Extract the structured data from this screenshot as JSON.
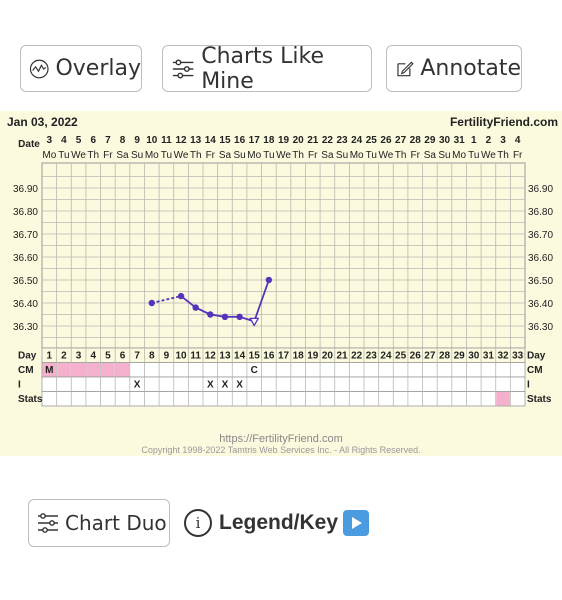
{
  "toolbar": {
    "overlay_label": "Overlay",
    "charts_like_mine_label": "Charts Like Mine",
    "annotate_label": "Annotate"
  },
  "chart": {
    "date": "Jan 03, 2022",
    "brand": "FertilityFriend.com",
    "footer_url": "https://FertilityFriend.com",
    "footer_copyright": "Copyright 1998-2022 Tamtris Web Services Inc. - All Rights Reserved."
  },
  "chart_data": {
    "type": "line",
    "row_labels": {
      "date": "Date",
      "day": "Day",
      "cm": "CM",
      "i": "I",
      "stats": "Stats"
    },
    "dates": [
      "3",
      "4",
      "5",
      "6",
      "7",
      "8",
      "9",
      "10",
      "11",
      "12",
      "13",
      "14",
      "15",
      "16",
      "17",
      "18",
      "19",
      "20",
      "21",
      "22",
      "23",
      "24",
      "25",
      "26",
      "27",
      "28",
      "29",
      "30",
      "31",
      "1",
      "2",
      "3",
      "4"
    ],
    "weekdays": [
      "Mo",
      "Tu",
      "We",
      "Th",
      "Fr",
      "Sa",
      "Su",
      "Mo",
      "Tu",
      "We",
      "Th",
      "Fr",
      "Sa",
      "Su",
      "Mo",
      "Tu",
      "We",
      "Th",
      "Fr",
      "Sa",
      "Su",
      "Mo",
      "Tu",
      "We",
      "Th",
      "Fr",
      "Sa",
      "Su",
      "Mo",
      "Tu",
      "We",
      "Th",
      "Fr"
    ],
    "weekday_labels_shown": [
      "Mo",
      "Tu",
      "We",
      "Th",
      "Fr",
      "Sa",
      "Su",
      "Mo",
      "Tu",
      "We",
      "Th",
      "Fr",
      "Sa",
      "Su",
      "Mo",
      "Tu",
      "We",
      "Th",
      "Fr",
      "Sa",
      "Su",
      "Mo",
      "Tu",
      "We",
      "Th",
      "Fr",
      "Sa",
      "Su",
      "Mo",
      "Tu",
      "We",
      "Th",
      "Fr"
    ],
    "days": [
      1,
      2,
      3,
      4,
      5,
      6,
      7,
      8,
      9,
      10,
      11,
      12,
      13,
      14,
      15,
      16,
      17,
      18,
      19,
      20,
      21,
      22,
      23,
      24,
      25,
      26,
      27,
      28,
      29,
      30,
      31,
      32,
      33
    ],
    "y_ticks": [
      "36.90",
      "36.80",
      "36.70",
      "36.60",
      "36.50",
      "36.40",
      "36.30"
    ],
    "ylim": [
      36.2,
      36.95
    ],
    "temps": [
      {
        "day": 8,
        "value": 36.4
      },
      {
        "day": 10,
        "value": 36.43
      },
      {
        "day": 11,
        "value": 36.38
      },
      {
        "day": 12,
        "value": 36.35
      },
      {
        "day": 13,
        "value": 36.34
      },
      {
        "day": 14,
        "value": 36.34
      },
      {
        "day": 15,
        "value": 36.32,
        "marker": "open-triangle"
      },
      {
        "day": 16,
        "value": 36.5
      }
    ],
    "dashed_segments": [
      [
        8,
        10
      ]
    ],
    "cm_entries": [
      {
        "day": 1,
        "label": "M",
        "pink": true
      },
      {
        "day": 2,
        "label": "",
        "pink": true
      },
      {
        "day": 3,
        "label": "",
        "pink": true
      },
      {
        "day": 4,
        "label": "",
        "pink": true
      },
      {
        "day": 5,
        "label": "",
        "pink": true
      },
      {
        "day": 6,
        "label": "",
        "pink": true
      },
      {
        "day": 15,
        "label": "C",
        "pink": false
      }
    ],
    "i_entries": [
      {
        "day": 7,
        "label": "X"
      },
      {
        "day": 12,
        "label": "X"
      },
      {
        "day": 13,
        "label": "X"
      },
      {
        "day": 14,
        "label": "X"
      }
    ],
    "stats_pink_days": [
      32
    ],
    "line_color": "#5533bb",
    "pink_color": "#f4b0cc",
    "grid": true
  },
  "bottom": {
    "chart_duo_label": "Chart Duo",
    "legend_label": "Legend/Key",
    "info_glyph": "i"
  },
  "icons": {
    "overlay": "chart-line-icon",
    "charts_like_mine": "sliders-icon",
    "annotate": "edit-icon",
    "chart_duo": "sliders-icon",
    "legend": "info-icon",
    "play": "play-icon"
  }
}
